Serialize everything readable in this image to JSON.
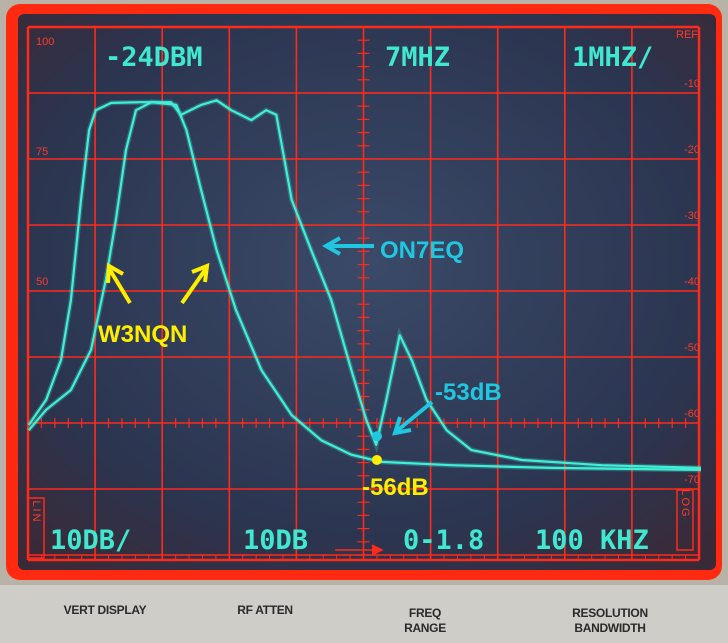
{
  "screen": {
    "top_readouts": {
      "ref_level": "-24DBM",
      "center_freq": "7MHZ",
      "span": "1MHZ/"
    },
    "bottom_readouts": {
      "vert_scale": "10DB/",
      "rf_atten": "10DB",
      "freq_range": "0-1.8",
      "res_bw": "100 KHZ"
    },
    "left_mode": "LIN",
    "right_mode": "LOG",
    "ref_label": "REF",
    "left_axis_labels": [
      "100",
      "75",
      "50"
    ]
  },
  "panel": {
    "vert_display": "VERT DISPLAY",
    "rf_atten": "RF ATTEN",
    "freq_range_1": "FREQ",
    "freq_range_2": "RANGE",
    "res_bw_1": "RESOLUTION",
    "res_bw_2": "BANDWIDTH"
  },
  "annotations": {
    "on7eq": "ON7EQ",
    "w3nqn": "W3NQN",
    "db53": "-53dB",
    "db56": "-56dB"
  },
  "colors": {
    "grid": "#ff2a1a",
    "trace": "#3ff0d6",
    "annotation_yellow": "#ffee00",
    "annotation_cyan": "#1fc8e0"
  },
  "chart_data": {
    "type": "line",
    "title": "",
    "xlabel": "",
    "ylabel": "",
    "xlim": [
      2,
      12
    ],
    "ylim": [
      -80,
      0
    ],
    "y_tick_labels": [
      "-10",
      "-20",
      "-30",
      "-40",
      "-50",
      "-60",
      "-70"
    ],
    "y_ticks": [
      -10,
      -20,
      -30,
      -40,
      -50,
      -60,
      -70
    ],
    "grid": true,
    "series": [
      {
        "name": "ON7EQ",
        "x": [
          2.01,
          2.27,
          2.49,
          2.64,
          2.79,
          2.91,
          3.01,
          3.24,
          3.69,
          4.13,
          4.28,
          4.58,
          4.81,
          5.03,
          5.33,
          5.55,
          5.7,
          5.93,
          6.22,
          6.52,
          6.82,
          7.04,
          7.19,
          7.34,
          7.54,
          7.72,
          7.94,
          8.24,
          8.61,
          9.36,
          10.55,
          12.03
        ],
        "y": [
          -60.3,
          -56.5,
          -50.5,
          -41.4,
          -26.2,
          -15.6,
          -12.6,
          -11.5,
          -11.4,
          -11.4,
          -13.3,
          -11.8,
          -11.1,
          -12.6,
          -14.1,
          -12.6,
          -13.3,
          -26.2,
          -33.8,
          -41.4,
          -52.0,
          -59.5,
          -63.3,
          -56.5,
          -46.7,
          -50.5,
          -56.5,
          -61.1,
          -64.1,
          -65.6,
          -66.4,
          -66.8
        ]
      },
      {
        "name": "W3NQN",
        "x": [
          2.01,
          2.27,
          2.64,
          2.94,
          3.16,
          3.31,
          3.46,
          3.61,
          3.84,
          4.21,
          4.36,
          4.58,
          4.81,
          5.1,
          5.48,
          5.93,
          6.37,
          6.82,
          7.27,
          8.31,
          9.81,
          12.03
        ],
        "y": [
          -61.1,
          -58.0,
          -55.0,
          -48.9,
          -38.3,
          -29.2,
          -18.6,
          -12.6,
          -11.4,
          -11.8,
          -15.6,
          -24.7,
          -33.8,
          -42.9,
          -52.0,
          -58.8,
          -62.6,
          -64.8,
          -65.9,
          -66.4,
          -66.8,
          -67.1
        ]
      }
    ],
    "markers": [
      {
        "label": "-53dB",
        "x": 7.2,
        "y": -62.0
      },
      {
        "label": "-56dB",
        "x": 7.2,
        "y": -65.6
      }
    ]
  }
}
